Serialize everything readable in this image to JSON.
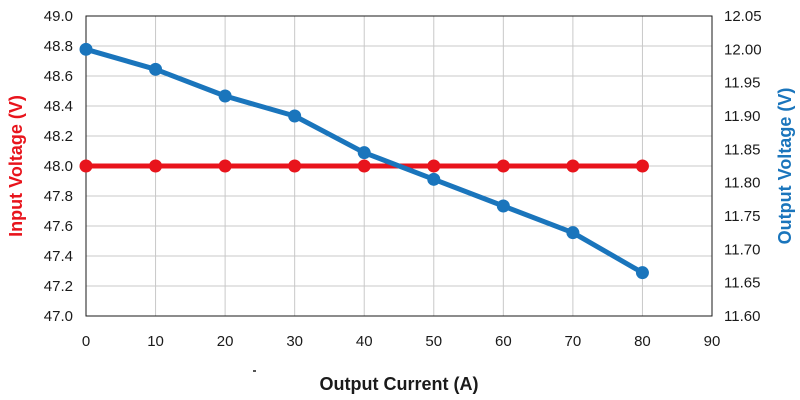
{
  "chart_data": {
    "type": "line",
    "title": "",
    "xlabel": "Output Current (A)",
    "ylabel_left": "Input Voltage (V)",
    "ylabel_right": "Output Voltage (V)",
    "xlim": [
      0,
      90
    ],
    "x_ticks": [
      "0",
      "10",
      "20",
      "30",
      "40",
      "50",
      "60",
      "70",
      "80",
      "90"
    ],
    "ylim_left": [
      47.0,
      49.0
    ],
    "y_ticks_left": [
      "47.0",
      "47.2",
      "47.4",
      "47.6",
      "47.8",
      "48.0",
      "48.2",
      "48.4",
      "48.6",
      "48.8",
      "49.0"
    ],
    "ylim_right": [
      11.6,
      12.05
    ],
    "y_ticks_right": [
      "11.60",
      "11.65",
      "11.70",
      "11.75",
      "11.80",
      "11.85",
      "11.90",
      "11.95",
      "12.00",
      "12.05"
    ],
    "grid": true,
    "colors": {
      "left": "#e8141c",
      "right": "#1a75bc",
      "grid": "#c8c8c8"
    },
    "series": [
      {
        "name": "Input Voltage (V)",
        "axis": "left",
        "color": "#e8141c",
        "x": [
          0,
          10,
          20,
          30,
          40,
          50,
          60,
          70,
          80
        ],
        "values": [
          48.0,
          48.0,
          48.0,
          48.0,
          48.0,
          48.0,
          48.0,
          48.0,
          48.0
        ]
      },
      {
        "name": "Output Voltage (V)",
        "axis": "right",
        "color": "#1a75bc",
        "x": [
          0,
          10,
          20,
          30,
          40,
          50,
          60,
          70,
          80
        ],
        "values": [
          12.0,
          11.97,
          11.93,
          11.9,
          11.845,
          11.805,
          11.765,
          11.725,
          11.665
        ]
      }
    ]
  }
}
